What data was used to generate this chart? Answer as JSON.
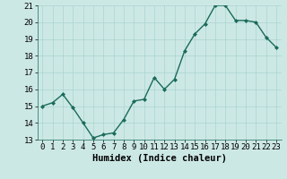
{
  "title": "",
  "xlabel": "Humidex (Indice chaleur)",
  "ylabel": "",
  "x": [
    0,
    1,
    2,
    3,
    4,
    5,
    6,
    7,
    8,
    9,
    10,
    11,
    12,
    13,
    14,
    15,
    16,
    17,
    18,
    19,
    20,
    21,
    22,
    23
  ],
  "y": [
    15.0,
    15.2,
    15.7,
    14.9,
    14.0,
    13.1,
    13.3,
    13.4,
    14.2,
    15.3,
    15.4,
    16.7,
    16.0,
    16.6,
    18.3,
    19.3,
    19.9,
    21.0,
    21.0,
    20.1,
    20.1,
    20.0,
    19.1,
    18.5
  ],
  "line_color": "#1a6b5a",
  "marker": "D",
  "marker_size": 2.0,
  "bg_color": "#cce8e5",
  "grid_color": "#aad4d0",
  "ylim": [
    13,
    21
  ],
  "xlim": [
    -0.5,
    23.5
  ],
  "yticks": [
    13,
    14,
    15,
    16,
    17,
    18,
    19,
    20,
    21
  ],
  "xticks": [
    0,
    1,
    2,
    3,
    4,
    5,
    6,
    7,
    8,
    9,
    10,
    11,
    12,
    13,
    14,
    15,
    16,
    17,
    18,
    19,
    20,
    21,
    22,
    23
  ],
  "xlabel_fontsize": 7.5,
  "tick_fontsize": 6.5,
  "line_width": 1.0
}
